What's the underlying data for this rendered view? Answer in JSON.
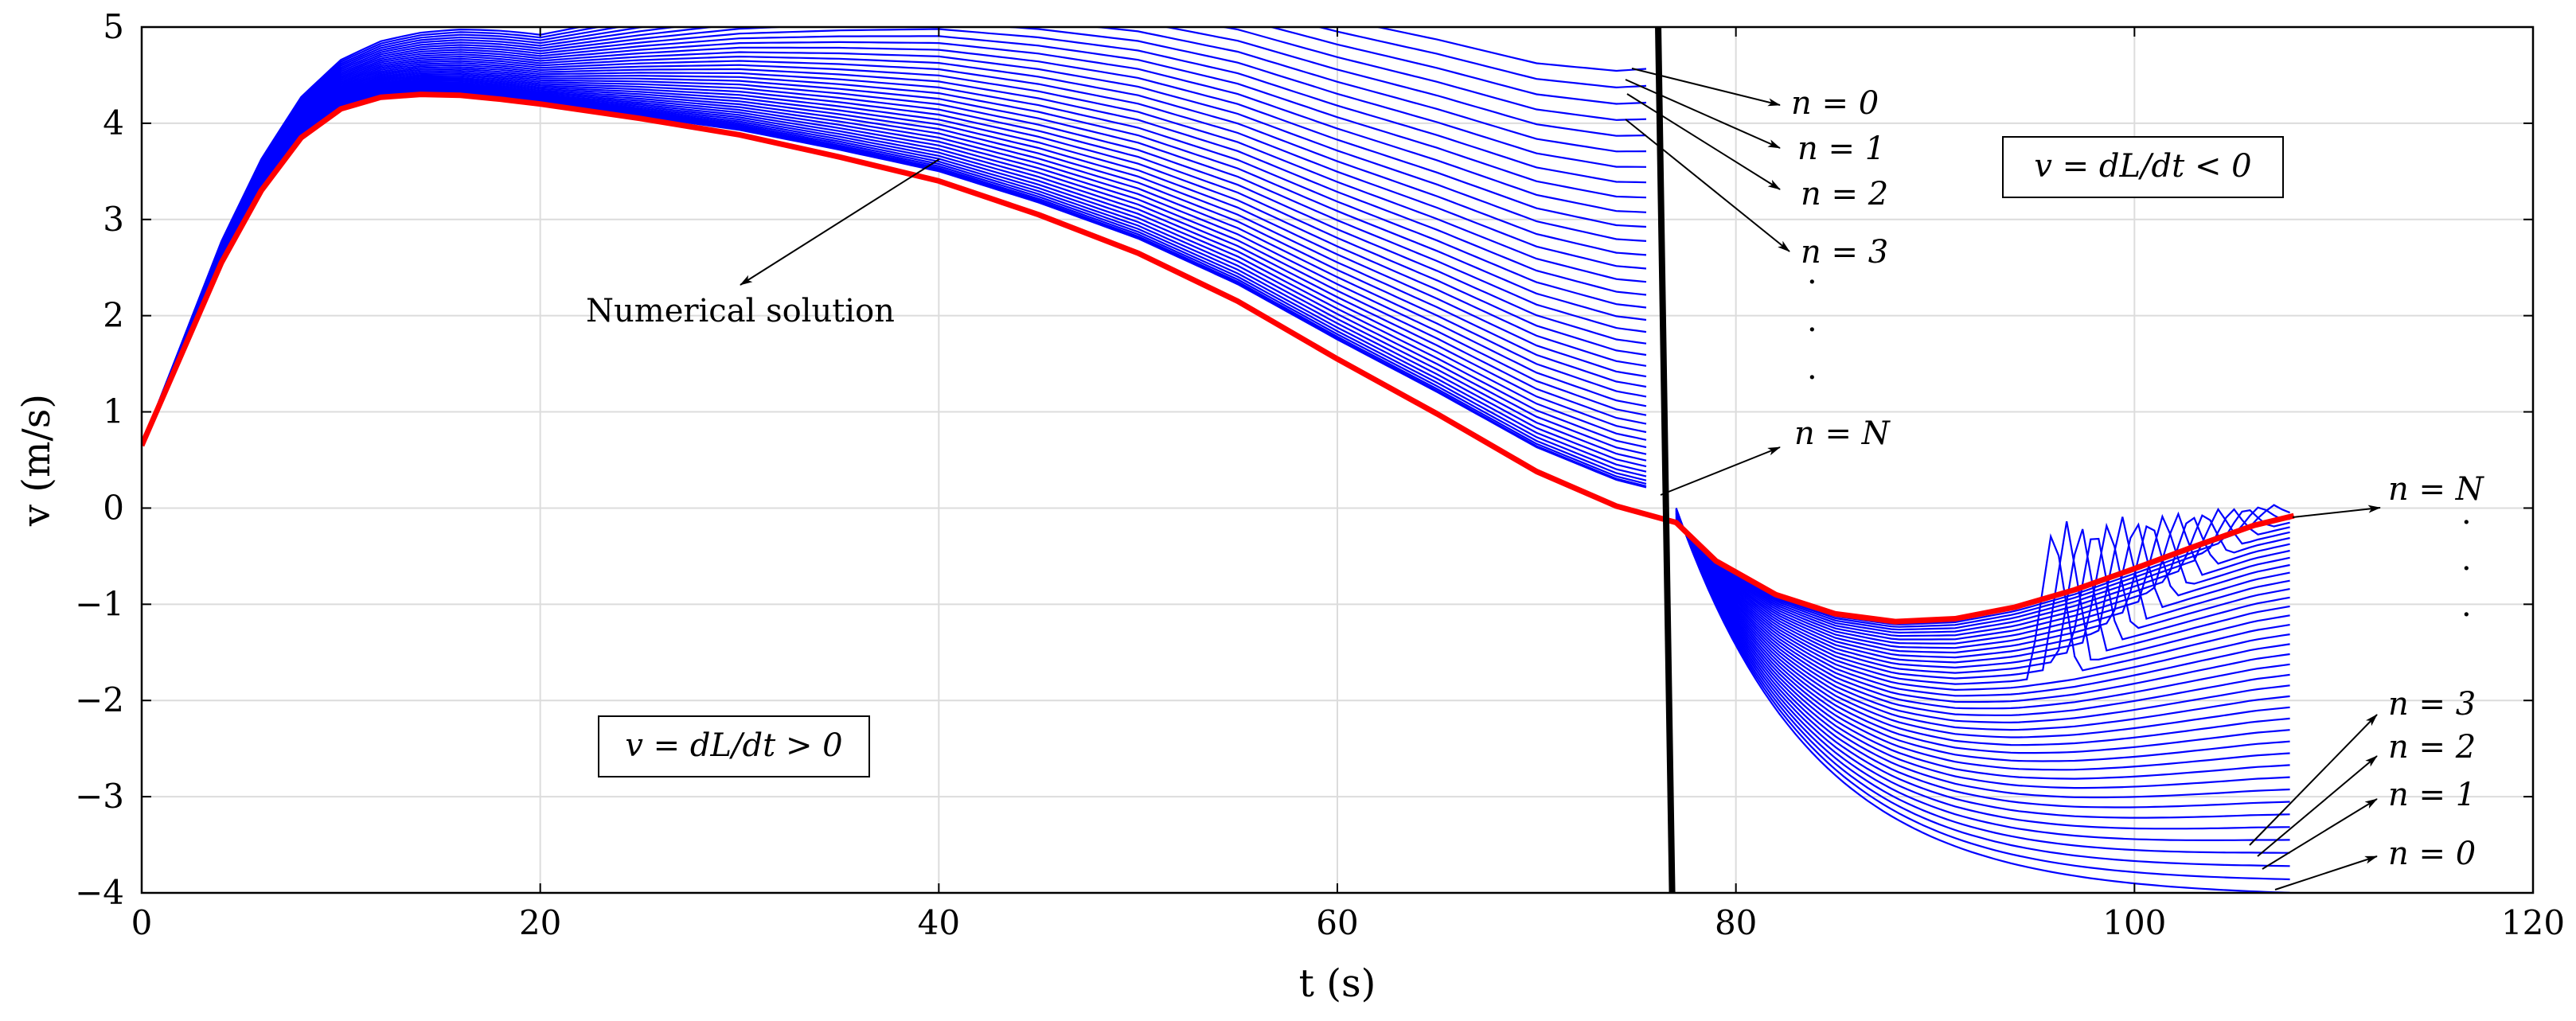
{
  "chart_data": {
    "type": "line",
    "xlabel": "t (s)",
    "ylabel": "v (m/s)",
    "xlim": [
      0,
      120
    ],
    "ylim": [
      -4,
      5
    ],
    "xticks": [
      "0",
      "20",
      "40",
      "60",
      "80",
      "100",
      "120"
    ],
    "yticks": [
      "-4",
      "-3",
      "-2",
      "-1",
      "0",
      "1",
      "2",
      "3",
      "4",
      "5"
    ],
    "grid": true,
    "colors": {
      "iterates": "#0000ff",
      "numerical": "#ff0000",
      "boundary": "#000000"
    },
    "boundary_line": {
      "t": [
        76.1,
        76.8
      ],
      "v": [
        5,
        -4
      ]
    },
    "series": [
      {
        "name": "Numerical solution",
        "t": [
          0,
          2,
          4,
          6,
          8,
          10,
          12,
          14,
          16,
          18,
          20,
          25,
          30,
          35,
          40,
          45,
          50,
          55,
          60,
          65,
          70,
          74,
          77,
          79,
          82,
          85,
          88,
          91,
          94,
          97,
          100,
          103,
          106,
          108
        ],
        "v": [
          0.65,
          1.6,
          2.55,
          3.3,
          3.85,
          4.15,
          4.27,
          4.3,
          4.29,
          4.25,
          4.2,
          4.05,
          3.88,
          3.65,
          3.4,
          3.05,
          2.65,
          2.15,
          1.55,
          0.98,
          0.38,
          0.02,
          -0.15,
          -0.55,
          -0.9,
          -1.1,
          -1.18,
          -1.15,
          -1.03,
          -0.85,
          -0.63,
          -0.4,
          -0.18,
          -0.08
        ]
      }
    ],
    "iterates": {
      "count_phase1": 40,
      "count_phase2": 40,
      "phase1_end_t": 75.8,
      "phase1_end_v_first": 4.57,
      "phase1_end_v_last": 0.2,
      "phase1_peak_first": 4.92,
      "phase2_start_t": 77,
      "phase2_end_t": 108,
      "phase2_min_first": -4.0,
      "phase2_end_first": -4.0
    },
    "annotations": {
      "left_box": "v = dL/dt > 0",
      "right_box": "v = dL/dt < 0",
      "numerical": "Numerical solution",
      "phase1_labels": [
        "n = 0",
        "n = 1",
        "n = 2",
        "n = 3",
        "n = N"
      ],
      "phase2_labels": [
        "n = N",
        "n = 3",
        "n = 2",
        "n = 1",
        "n = 0"
      ],
      "dots": "·"
    }
  }
}
